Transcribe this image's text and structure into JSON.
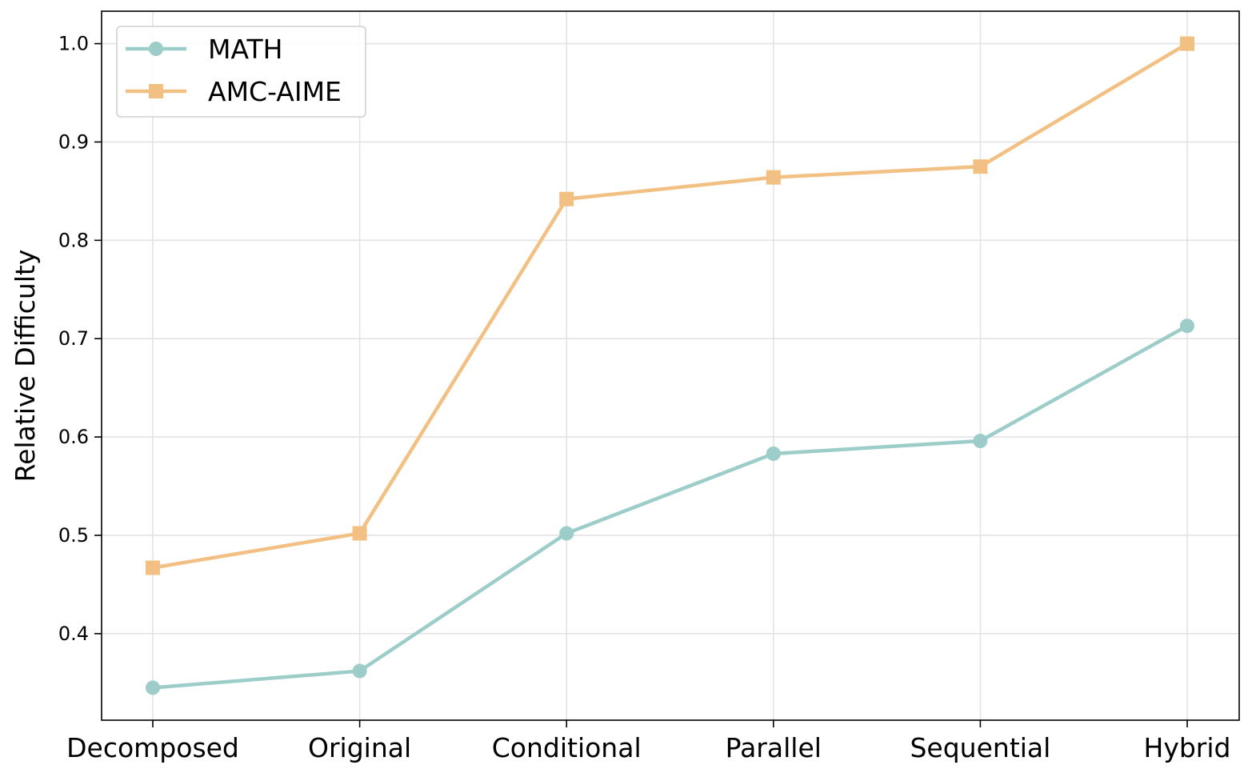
{
  "chart_data": {
    "type": "line",
    "categories": [
      "Decomposed",
      "Original",
      "Conditional",
      "Parallel",
      "Sequential",
      "Hybrid"
    ],
    "series": [
      {
        "name": "MATH",
        "marker": "circle",
        "color": "#9ccdc8",
        "values": [
          0.345,
          0.362,
          0.502,
          0.583,
          0.596,
          0.713
        ]
      },
      {
        "name": "AMC-AIME",
        "marker": "square",
        "color": "#f3c083",
        "values": [
          0.467,
          0.502,
          0.842,
          0.864,
          0.875,
          1.0
        ]
      }
    ],
    "ylabel": "Relative Difficulty",
    "xlabel": "",
    "ylim": [
      0.312,
      1.033
    ],
    "yticks": [
      "0.4",
      "0.5",
      "0.6",
      "0.7",
      "0.8",
      "0.9",
      "1.0"
    ],
    "grid": true,
    "legend_position": "top-left"
  }
}
